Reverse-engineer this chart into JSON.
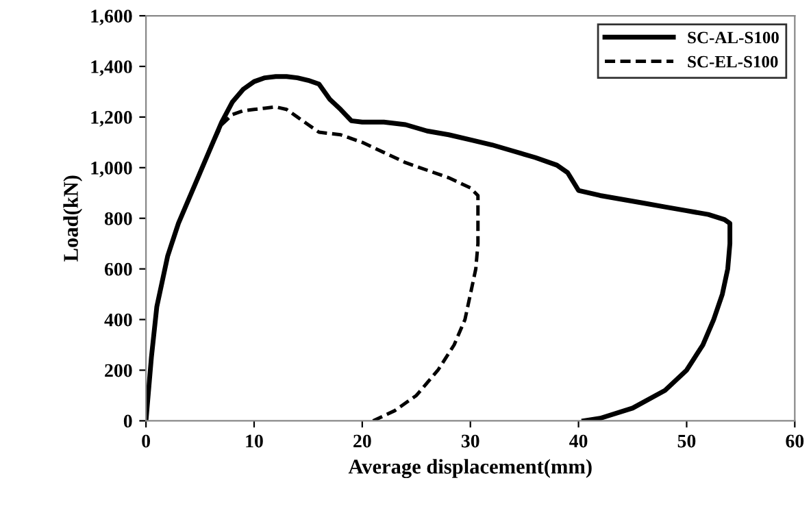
{
  "chart_data": {
    "type": "line",
    "xlabel": "Average displacement(mm)",
    "ylabel": "Load(kN)",
    "xlim": [
      0,
      60
    ],
    "xticks": [
      0,
      10,
      20,
      30,
      40,
      50,
      60
    ],
    "ylim": [
      0,
      1600
    ],
    "yticks": [
      0,
      200,
      400,
      600,
      800,
      {
        "value": 1000,
        "label": "1,000"
      },
      {
        "value": 1200,
        "label": "1,200"
      },
      {
        "value": 1400,
        "label": "1,400"
      },
      {
        "value": 1600,
        "label": "1,600"
      }
    ],
    "grid": false,
    "legend": "top right",
    "marker": "none",
    "series": [
      {
        "name": "SC-AL-S100",
        "color": "#000000",
        "line_style": "solid",
        "x": [
          0,
          0.5,
          1,
          2,
          3,
          4,
          5,
          6,
          7,
          8,
          9,
          10,
          11,
          12,
          13,
          14,
          15,
          16,
          17,
          18,
          19,
          20,
          22,
          24,
          26,
          28,
          30,
          32,
          34,
          36,
          38,
          39,
          40,
          42,
          44,
          46,
          48,
          50,
          52,
          53.5,
          54,
          54,
          53.8,
          53.3,
          52.5,
          51.5,
          50,
          48,
          45,
          42,
          40.5
        ],
        "values": [
          0,
          250,
          450,
          650,
          780,
          880,
          980,
          1080,
          1180,
          1260,
          1310,
          1340,
          1355,
          1360,
          1360,
          1355,
          1345,
          1330,
          1270,
          1230,
          1185,
          1180,
          1180,
          1170,
          1145,
          1130,
          1110,
          1090,
          1065,
          1040,
          1010,
          980,
          910,
          890,
          875,
          860,
          845,
          830,
          815,
          795,
          780,
          700,
          600,
          500,
          400,
          300,
          200,
          120,
          50,
          10,
          0
        ]
      },
      {
        "name": "SC-EL-S100",
        "color": "#000000",
        "line_style": "dashed",
        "x": [
          0,
          0.5,
          1,
          2,
          3,
          4,
          5,
          6,
          7,
          8,
          9,
          10,
          11,
          12,
          13,
          14,
          15,
          16,
          18,
          20,
          22,
          24,
          26,
          28,
          30,
          30.7,
          30.7,
          30.5,
          30,
          29.5,
          28.5,
          27,
          25,
          23,
          21
        ],
        "values": [
          0,
          250,
          450,
          650,
          780,
          880,
          980,
          1080,
          1170,
          1210,
          1225,
          1230,
          1235,
          1240,
          1230,
          1200,
          1170,
          1140,
          1130,
          1100,
          1060,
          1020,
          990,
          960,
          920,
          890,
          700,
          600,
          500,
          400,
          300,
          200,
          100,
          40,
          0
        ]
      }
    ]
  }
}
